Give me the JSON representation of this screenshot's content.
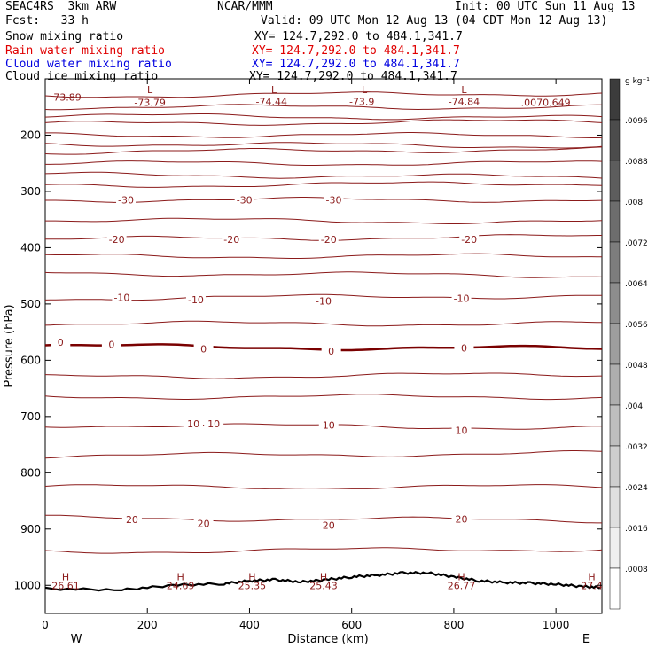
{
  "header": {
    "title_left": "SEAC4RS  3km ARW",
    "forecast": "Fcst:   33 h",
    "center": "NCAR/MMM",
    "init": "Init: 00 UTC Sun 11 Aug 13",
    "valid": "Valid: 09 UTC Mon 12 Aug 13 (04 CDT Mon 12 Aug 13)"
  },
  "fields": [
    {
      "name": "Snow mixing ratio",
      "xy": "XY= 124.7,292.0 to 484.1,341.7",
      "color": "#000000"
    },
    {
      "name": "Rain water mixing ratio",
      "xy": "XY= 124.7,292.0 to 484.1,341.7",
      "color": "#e00000"
    },
    {
      "name": "Cloud water mixing ratio",
      "xy": "XY= 124.7,292.0 to 484.1,341.7",
      "color": "#0000e0"
    },
    {
      "name": "Cloud ice mixing ratio",
      "xy": "XY= 124.7,292.0 to 484.1,341.7",
      "color": "#000000"
    }
  ],
  "colorbar": {
    "unit": "g kg⁻¹",
    "labels": [
      ".0096",
      ".0088",
      ".008",
      ".0072",
      ".0064",
      ".0056",
      ".0048",
      ".004",
      ".0032",
      ".0024",
      ".0016",
      ".0008"
    ]
  },
  "chart_data": {
    "type": "contour",
    "xlabel": "Distance (km)",
    "ylabel": "Pressure (hPa)",
    "xlim": [
      0,
      1090
    ],
    "ylim_hPa": [
      1050,
      100
    ],
    "x_ticks": [
      "0",
      "200",
      "400",
      "600",
      "800",
      "1000"
    ],
    "y_ticks": [
      "200",
      "300",
      "400",
      "500",
      "600",
      "700",
      "800",
      "900",
      "1000"
    ],
    "x_end_labels": {
      "left": "W",
      "right": "E"
    },
    "temperature_labels": [
      {
        "x": 158,
        "p": 315,
        "text": "-30"
      },
      {
        "x": 390,
        "p": 315,
        "text": "-30"
      },
      {
        "x": 565,
        "p": 315,
        "text": "-30"
      },
      {
        "x": 140,
        "p": 385,
        "text": "-20"
      },
      {
        "x": 365,
        "p": 385,
        "text": "-20"
      },
      {
        "x": 555,
        "p": 385,
        "text": "-20"
      },
      {
        "x": 830,
        "p": 385,
        "text": "-20"
      },
      {
        "x": 150,
        "p": 488,
        "text": "-10"
      },
      {
        "x": 295,
        "p": 492,
        "text": "-10"
      },
      {
        "x": 545,
        "p": 495,
        "text": "-10"
      },
      {
        "x": 815,
        "p": 490,
        "text": "-10"
      },
      {
        "x": 30,
        "p": 568,
        "text": "0"
      },
      {
        "x": 130,
        "p": 572,
        "text": "0"
      },
      {
        "x": 310,
        "p": 580,
        "text": "0"
      },
      {
        "x": 560,
        "p": 584,
        "text": "0"
      },
      {
        "x": 820,
        "p": 578,
        "text": "0"
      },
      {
        "x": 290,
        "p": 713,
        "text": "10"
      },
      {
        "x": 330,
        "p": 713,
        "text": "10"
      },
      {
        "x": 555,
        "p": 715,
        "text": "10"
      },
      {
        "x": 815,
        "p": 725,
        "text": "10"
      },
      {
        "x": 170,
        "p": 883,
        "text": "20"
      },
      {
        "x": 310,
        "p": 890,
        "text": "20"
      },
      {
        "x": 555,
        "p": 893,
        "text": "20"
      },
      {
        "x": 815,
        "p": 882,
        "text": "20"
      }
    ],
    "top_labels": [
      {
        "x": 40,
        "p": 132,
        "text": "-73.89"
      },
      {
        "x": 205,
        "p": 142,
        "text": "-73.79"
      },
      {
        "x": 443,
        "p": 140,
        "text": "-74.44"
      },
      {
        "x": 620,
        "p": 140,
        "text": "-73.9"
      },
      {
        "x": 820,
        "p": 140,
        "text": "-74.84"
      },
      {
        "x": 980,
        "p": 142,
        "text": ".0070.649"
      }
    ],
    "low_markers": [
      {
        "x": 205,
        "p": 119
      },
      {
        "x": 448,
        "p": 119
      },
      {
        "x": 625,
        "p": 119
      },
      {
        "x": 820,
        "p": 119
      }
    ],
    "highs": [
      {
        "x": 40,
        "label": "H",
        "value": "26.61"
      },
      {
        "x": 265,
        "label": "H",
        "value": "24.69"
      },
      {
        "x": 405,
        "label": "H",
        "value": "25.35"
      },
      {
        "x": 545,
        "label": "H",
        "value": "25.43"
      },
      {
        "x": 815,
        "label": "H",
        "value": "26.77"
      },
      {
        "x": 1070,
        "label": "H",
        "value": "27.4"
      }
    ],
    "isotherm_levels_hPa": [
      130,
      150,
      165,
      180,
      200,
      215,
      230,
      250,
      270,
      290,
      315,
      350,
      385,
      415,
      445,
      490,
      535,
      575,
      630,
      665,
      715,
      770,
      825,
      880,
      940
    ],
    "terrain_hPa_samples": [
      [
        0,
        1006
      ],
      [
        150,
        1008
      ],
      [
        250,
        1000
      ],
      [
        350,
        997
      ],
      [
        400,
        992
      ],
      [
        450,
        990
      ],
      [
        500,
        994
      ],
      [
        550,
        990
      ],
      [
        600,
        985
      ],
      [
        650,
        982
      ],
      [
        700,
        978
      ],
      [
        750,
        978
      ],
      [
        800,
        985
      ],
      [
        850,
        992
      ],
      [
        900,
        995
      ],
      [
        950,
        996
      ],
      [
        1000,
        998
      ],
      [
        1050,
        1002
      ],
      [
        1090,
        1004
      ]
    ]
  }
}
